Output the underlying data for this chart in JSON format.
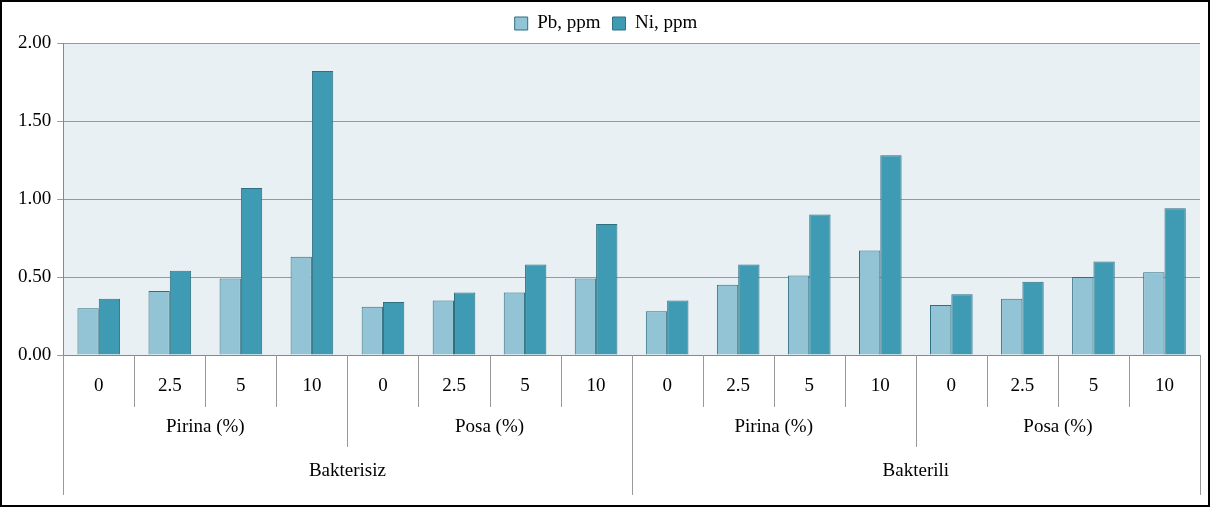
{
  "chart_data": {
    "type": "bar",
    "categories": [
      "0",
      "2.5",
      "5",
      "10",
      "0",
      "2.5",
      "5",
      "10",
      "0",
      "2.5",
      "5",
      "10",
      "0",
      "2.5",
      "5",
      "10"
    ],
    "series": [
      {
        "name": "Pb, ppm",
        "color": "#93c4d5",
        "values": [
          0.3,
          0.41,
          0.49,
          0.63,
          0.31,
          0.35,
          0.4,
          0.49,
          0.28,
          0.45,
          0.51,
          0.67,
          0.32,
          0.36,
          0.5,
          0.53
        ]
      },
      {
        "name": "Ni, ppm",
        "color": "#3f9bb3",
        "values": [
          0.36,
          0.54,
          1.07,
          1.82,
          0.34,
          0.4,
          0.58,
          0.84,
          0.35,
          0.58,
          0.9,
          1.28,
          0.39,
          0.47,
          0.6,
          0.94
        ]
      }
    ],
    "annotations": [
      "Pirina (%)",
      "Posa (%)",
      "Pirina (%)",
      "Posa (%)",
      "Bakterisiz",
      "Bakterili"
    ],
    "ylim": [
      0,
      2
    ],
    "yticks": [
      {
        "value": 0,
        "label": "0.00"
      },
      {
        "value": 0.5,
        "label": "0.50"
      },
      {
        "value": 1,
        "label": "1.00"
      },
      {
        "value": 1.5,
        "label": "1.50"
      },
      {
        "value": 2,
        "label": "2.00"
      }
    ],
    "grid": "y",
    "legend": "top"
  }
}
